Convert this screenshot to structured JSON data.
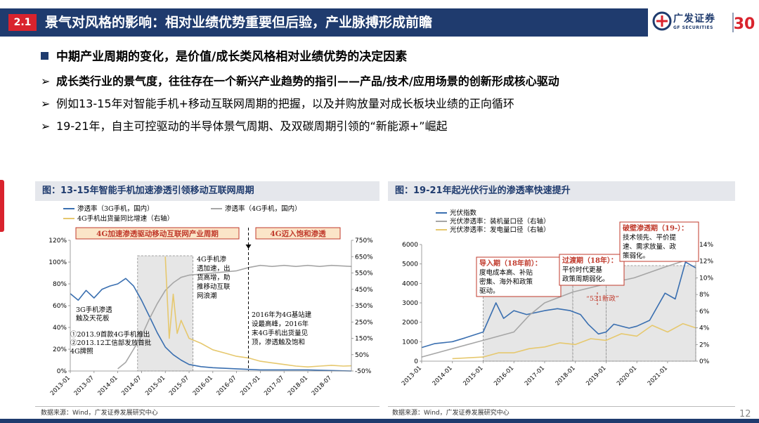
{
  "header": {
    "section_number": "2.1",
    "title": "景气对风格的影响：相对业绩优势重要但后验，产业脉搏形成前瞻",
    "logo_cn": "广发证券",
    "logo_en": "GF SECURITIES",
    "logo_anniversary": "30"
  },
  "bullets": [
    {
      "marker": "■",
      "text": "中期产业周期的变化，是价值/成长类风格相对业绩优势的决定因素"
    },
    {
      "marker": "➢",
      "text": "成长类行业的景气度，往往存在一个新兴产业趋势的指引——产品/技术/应用场景的创新形成核心驱动"
    },
    {
      "marker": "➢",
      "text": "例如13-15年对智能手机+移动互联网周期的把握，以及并购放量对成长板块业绩的正向循环"
    },
    {
      "marker": "➢",
      "text": "19-21年，自主可控驱动的半导体景气周期、及双碳周期引领的“新能源+”崛起"
    }
  ],
  "colors": {
    "navy": "#1f3b6e",
    "red": "#d9232d",
    "series_blue": "#3a6fb0",
    "series_gray": "#a6a6a6",
    "series_gold": "#e6c86e",
    "phase_red": "#c0392b"
  },
  "charts": {
    "left": {
      "panel_title": "图：13-15年智能手机加速渗透引领移动互联网周期",
      "source": "数据来源：Wind，广发证券发展研究中心",
      "phase_labels": [
        "4G加速渗透驱动移动互联网产业周期",
        "4G迈入饱和渗透"
      ],
      "annotations": [
        [
          "3G手机渗透",
          "触及天花板"
        ],
        [
          "①2013.9首款4G手机推出",
          "②2013.12工信部发放首批",
          "4G牌照"
        ],
        [
          "4G手机渗",
          "透加速，出",
          "货高增，助",
          "推移动互联",
          "网浪潮"
        ],
        [
          "2016年为4G基站建",
          "设最高峰，2016年",
          "末4G手机出货量见",
          "顶，渗透触及饱和"
        ]
      ]
    },
    "right": {
      "panel_title": "图：19-21年起光伏行业的渗透率快速提升",
      "source": "数据来源：Wind，广发证券发展研究中心",
      "annotations": [
        {
          "title": "导入期（18年前）：",
          "body": [
            "度电成本高、补贴",
            "密集、海外和政策",
            "驱动。"
          ]
        },
        {
          "title": "过渡期（18年）：",
          "body": [
            "平价时代更基",
            "政策周期弱化。"
          ]
        },
        {
          "title": "破壁渗透期（19-）：",
          "body": [
            "技术领先、平价提",
            "速、需求放量、政",
            "策弱化。"
          ]
        },
        {
          "title": "",
          "body": [
            "“531新政”"
          ]
        }
      ]
    }
  },
  "page_number": "12",
  "chart_data": [
    {
      "type": "line",
      "title": "",
      "legend": [
        "渗透率（3G手机，国内）",
        "渗透率（4G手机，国内）",
        "4G手机出货量同比增速（右轴）"
      ],
      "legend_placement": "top",
      "x_tick_labels": [
        "2013-01",
        "2013-07",
        "2014-01",
        "2014-07",
        "2015-01",
        "2015-07",
        "2016-01",
        "2016-07",
        "2017-01",
        "2017-07",
        "2018-01",
        "2018-07"
      ],
      "y_left": {
        "ticks": [
          "0%",
          "20%",
          "40%",
          "60%",
          "80%",
          "100%",
          "120%"
        ],
        "range": [
          0,
          120
        ]
      },
      "y_right": {
        "ticks": [
          "-50%",
          "50%",
          "150%",
          "250%",
          "350%",
          "450%",
          "550%",
          "650%",
          "750%"
        ],
        "range": [
          -50,
          750
        ]
      },
      "x_range": [
        "2013-01",
        "2018-12"
      ],
      "series": [
        {
          "name": "渗透率（3G手机，国内）",
          "axis": "left",
          "color": "#3a6fb0",
          "points": [
            [
              "2013-01",
              71
            ],
            [
              "2013-03",
              65
            ],
            [
              "2013-05",
              74
            ],
            [
              "2013-07",
              67
            ],
            [
              "2013-09",
              75
            ],
            [
              "2013-11",
              78
            ],
            [
              "2014-01",
              80
            ],
            [
              "2014-03",
              85
            ],
            [
              "2014-05",
              78
            ],
            [
              "2014-07",
              65
            ],
            [
              "2014-09",
              50
            ],
            [
              "2014-11",
              35
            ],
            [
              "2015-01",
              22
            ],
            [
              "2015-03",
              15
            ],
            [
              "2015-05",
              10
            ],
            [
              "2015-07",
              6
            ],
            [
              "2015-10",
              4
            ],
            [
              "2016-01",
              3
            ],
            [
              "2016-07",
              2
            ],
            [
              "2017-01",
              1
            ],
            [
              "2017-07",
              1
            ],
            [
              "2018-01",
              1
            ],
            [
              "2018-12",
              0
            ]
          ]
        },
        {
          "name": "渗透率（4G手机，国内）",
          "axis": "left",
          "color": "#a6a6a6",
          "points": [
            [
              "2014-01",
              2
            ],
            [
              "2014-03",
              8
            ],
            [
              "2014-05",
              20
            ],
            [
              "2014-07",
              32
            ],
            [
              "2014-09",
              48
            ],
            [
              "2014-11",
              62
            ],
            [
              "2015-01",
              74
            ],
            [
              "2015-03",
              81
            ],
            [
              "2015-05",
              86
            ],
            [
              "2015-07",
              88
            ],
            [
              "2015-10",
              89
            ],
            [
              "2016-01",
              90
            ],
            [
              "2016-04",
              91
            ],
            [
              "2016-07",
              92
            ],
            [
              "2016-10",
              95
            ],
            [
              "2017-01",
              97
            ],
            [
              "2017-04",
              96
            ],
            [
              "2017-07",
              97
            ],
            [
              "2017-10",
              96
            ],
            [
              "2018-01",
              97
            ],
            [
              "2018-04",
              96
            ],
            [
              "2018-07",
              97
            ],
            [
              "2018-12",
              96
            ]
          ]
        },
        {
          "name": "4G手机出货量同比增速（右轴）",
          "axis": "right",
          "color": "#e6c86e",
          "points": [
            [
              "2015-01",
              650
            ],
            [
              "2015-02",
              150
            ],
            [
              "2015-03",
              420
            ],
            [
              "2015-04",
              180
            ],
            [
              "2015-05",
              260
            ],
            [
              "2015-07",
              150
            ],
            [
              "2015-10",
              120
            ],
            [
              "2016-01",
              80
            ],
            [
              "2016-04",
              60
            ],
            [
              "2016-07",
              40
            ],
            [
              "2016-10",
              30
            ],
            [
              "2017-01",
              10
            ],
            [
              "2017-04",
              0
            ],
            [
              "2017-07",
              -10
            ],
            [
              "2017-10",
              -20
            ],
            [
              "2018-01",
              -25
            ],
            [
              "2018-04",
              -20
            ],
            [
              "2018-07",
              -15
            ],
            [
              "2018-10",
              -20
            ],
            [
              "2018-12",
              -18
            ]
          ]
        }
      ]
    },
    {
      "type": "line",
      "title": "",
      "legend": [
        "光伏指数",
        "光伏渗透率：装机量口径（右轴）",
        "光伏渗透率：发电量口径（右轴）"
      ],
      "legend_placement": "top-left",
      "x_tick_labels": [
        "2013-01",
        "2014-01",
        "2015-01",
        "2016-01",
        "2017-01",
        "2018-01",
        "2019-01",
        "2020-01",
        "2021-01"
      ],
      "y_left": {
        "ticks": [
          "0",
          "1000",
          "2000",
          "3000",
          "4000",
          "5000",
          "6000"
        ],
        "range": [
          0,
          6000
        ]
      },
      "y_right": {
        "ticks": [
          "0%",
          "2%",
          "4%",
          "6%",
          "8%",
          "10%",
          "12%",
          "14%"
        ],
        "range": [
          0,
          14
        ]
      },
      "x_range": [
        "2013-01",
        "2021-12"
      ],
      "series": [
        {
          "name": "光伏指数",
          "axis": "left",
          "color": "#3a6fb0",
          "points": [
            [
              "2013-01",
              700
            ],
            [
              "2013-06",
              900
            ],
            [
              "2014-01",
              1000
            ],
            [
              "2014-06",
              1200
            ],
            [
              "2015-01",
              1500
            ],
            [
              "2015-06",
              3000
            ],
            [
              "2015-09",
              2200
            ],
            [
              "2016-01",
              2600
            ],
            [
              "2016-06",
              2400
            ],
            [
              "2017-01",
              2600
            ],
            [
              "2017-06",
              2700
            ],
            [
              "2017-11",
              2600
            ],
            [
              "2018-03",
              2400
            ],
            [
              "2018-06",
              1900
            ],
            [
              "2018-10",
              1400
            ],
            [
              "2019-01",
              1500
            ],
            [
              "2019-04",
              1900
            ],
            [
              "2019-10",
              1700
            ],
            [
              "2020-01",
              1800
            ],
            [
              "2020-06",
              2100
            ],
            [
              "2020-12",
              3500
            ],
            [
              "2021-04",
              3200
            ],
            [
              "2021-08",
              5100
            ],
            [
              "2021-12",
              4800
            ]
          ]
        },
        {
          "name": "光伏渗透率：装机量口径（右轴）",
          "axis": "right",
          "color": "#a6a6a6",
          "points": [
            [
              "2013-01",
              0.5
            ],
            [
              "2014-01",
              1.5
            ],
            [
              "2015-01",
              2.5
            ],
            [
              "2016-01",
              3.5
            ],
            [
              "2016-07",
              5.5
            ],
            [
              "2017-01",
              7.0
            ],
            [
              "2017-12",
              8.3
            ],
            [
              "2018-12",
              9.2
            ],
            [
              "2019-12",
              10.0
            ],
            [
              "2020-12",
              11.3
            ],
            [
              "2021-12",
              12.5
            ]
          ]
        },
        {
          "name": "光伏渗透率：发电量口径（右轴）",
          "axis": "right",
          "color": "#e6c86e",
          "points": [
            [
              "2014-01",
              0.3
            ],
            [
              "2015-01",
              0.5
            ],
            [
              "2015-07",
              1.0
            ],
            [
              "2016-01",
              1.0
            ],
            [
              "2016-07",
              1.5
            ],
            [
              "2017-01",
              1.7
            ],
            [
              "2017-07",
              2.2
            ],
            [
              "2018-01",
              2.0
            ],
            [
              "2018-07",
              2.7
            ],
            [
              "2019-01",
              2.5
            ],
            [
              "2019-07",
              3.3
            ],
            [
              "2020-01",
              3.0
            ],
            [
              "2020-07",
              4.3
            ],
            [
              "2021-01",
              3.5
            ],
            [
              "2021-07",
              4.5
            ],
            [
              "2021-12",
              4.0
            ]
          ]
        }
      ]
    }
  ]
}
